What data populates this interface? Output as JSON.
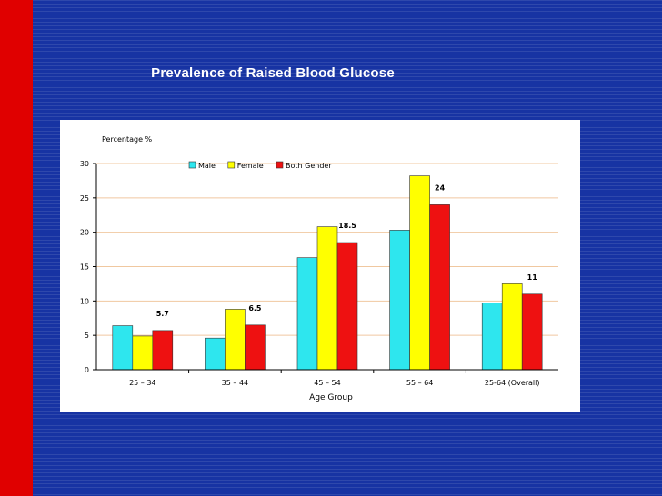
{
  "slide": {
    "title": "Prevalence of Raised Blood Glucose"
  },
  "colors": {
    "background": "#1733a3",
    "left_bar": "#e00000",
    "male": "#2ee6ee",
    "female": "#ffff00",
    "both": "#ee1111",
    "grid": "#f0c8a0"
  },
  "chart_data": {
    "type": "bar",
    "title": "",
    "ylabel": "Percentage %",
    "xlabel": "Age Group",
    "ylim": [
      0,
      30
    ],
    "yticks": [
      0,
      5,
      10,
      15,
      20,
      25,
      30
    ],
    "grid": true,
    "legend_position": "top",
    "categories": [
      "25 – 34",
      "35 – 44",
      "45 – 54",
      "55 – 64",
      "25-64 (Overall)"
    ],
    "series": [
      {
        "name": "Male",
        "color": "#2ee6ee",
        "values": [
          6.4,
          4.6,
          16.3,
          20.3,
          9.7
        ]
      },
      {
        "name": "Female",
        "color": "#ffff00",
        "values": [
          4.9,
          8.8,
          20.8,
          28.2,
          12.5
        ]
      },
      {
        "name": "Both Gender",
        "color": "#ee1111",
        "values": [
          5.7,
          6.5,
          18.5,
          24,
          11
        ]
      }
    ],
    "data_labels": [
      "5.7",
      "6.5",
      "18.5",
      "24",
      "11"
    ]
  }
}
